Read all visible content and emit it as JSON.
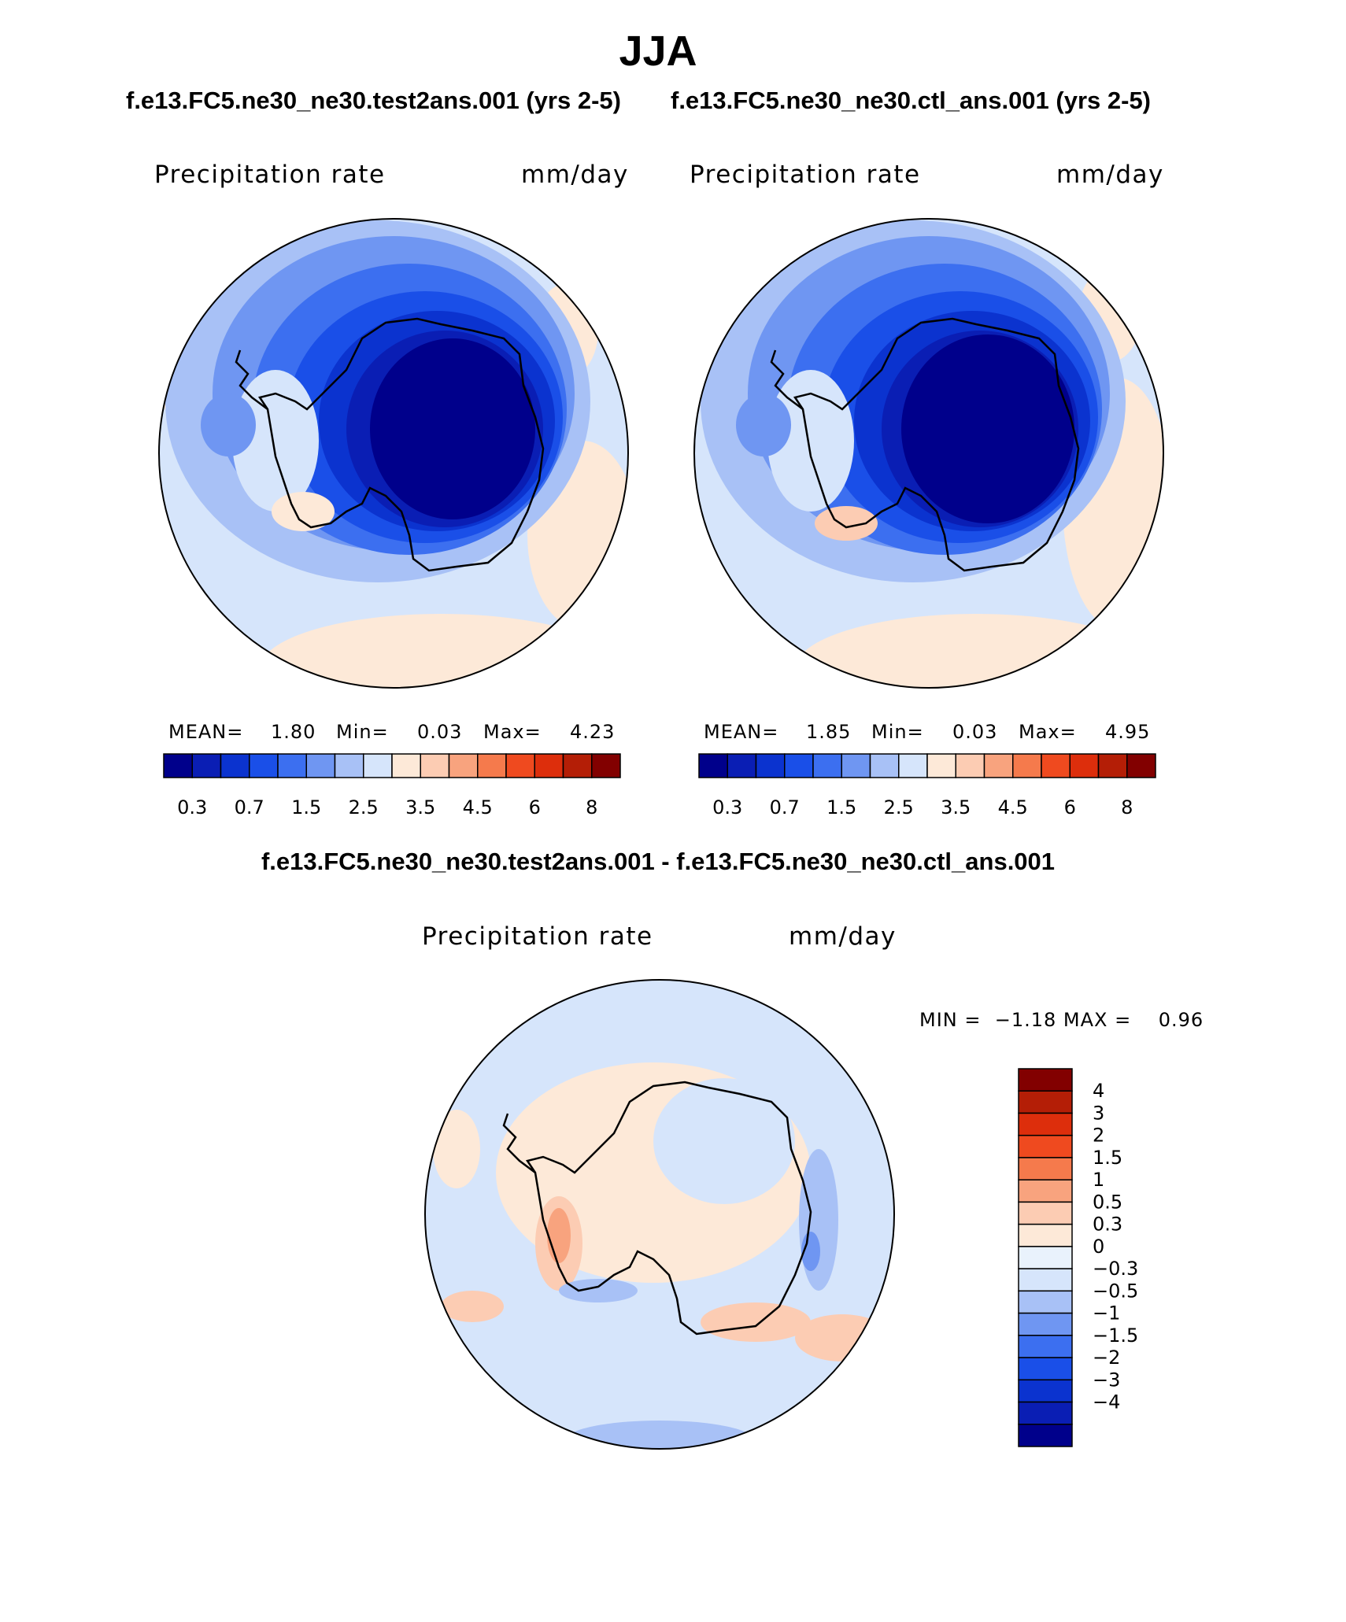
{
  "title": "JJA",
  "panels": {
    "test": {
      "case_title": "f.e13.FC5.ne30_ne30.test2ans.001 (yrs 2-5)",
      "variable": "Precipitation rate",
      "units": "mm/day",
      "mean_label": "MEAN=",
      "mean_value": "1.80",
      "min_label": "Min=",
      "min_value": "0.03",
      "max_label": "Max=",
      "max_value": "4.23"
    },
    "control": {
      "case_title": "f.e13.FC5.ne30_ne30.ctl_ans.001 (yrs 2-5)",
      "variable": "Precipitation rate",
      "units": "mm/day",
      "mean_label": "MEAN=",
      "mean_value": "1.85",
      "min_label": "Min=",
      "min_value": "0.03",
      "max_label": "Max=",
      "max_value": "4.95"
    },
    "difference": {
      "case_title": "f.e13.FC5.ne30_ne30.test2ans.001 - f.e13.FC5.ne30_ne30.ctl_ans.001",
      "variable": "Precipitation rate",
      "units": "mm/day",
      "minmax_text": "MIN =  −1.18 MAX =    0.96"
    }
  },
  "colorbars": {
    "absolute": {
      "colors": [
        "#00008b",
        "#0a1eb4",
        "#0b33cf",
        "#1a4fe8",
        "#3c6ff0",
        "#6f96f2",
        "#a8c1f6",
        "#d6e5fb",
        "#fde9d8",
        "#fcccb3",
        "#f8a37e",
        "#f57a4c",
        "#ef4a1f",
        "#dd2e0c",
        "#b41e06",
        "#820000"
      ],
      "tick_labels": [
        "0.3",
        "0.7",
        "1.5",
        "2.5",
        "3.5",
        "4.5",
        "6",
        "8"
      ]
    },
    "difference": {
      "colors": [
        "#820000",
        "#b41e06",
        "#dd2e0c",
        "#ef4a1f",
        "#f57a4c",
        "#f8a37e",
        "#fcccb3",
        "#fde9d8",
        "#e9f2fc",
        "#d6e5fb",
        "#a8c1f6",
        "#6f96f2",
        "#3c6ff0",
        "#1a4fe8",
        "#0b33cf",
        "#0a1eb4",
        "#00008b"
      ],
      "tick_labels": [
        "4",
        "3",
        "2",
        "1.5",
        "1",
        "0.5",
        "0.3",
        "0",
        "−0.3",
        "−0.5",
        "−1",
        "−1.5",
        "−2",
        "−3",
        "−4"
      ]
    }
  }
}
